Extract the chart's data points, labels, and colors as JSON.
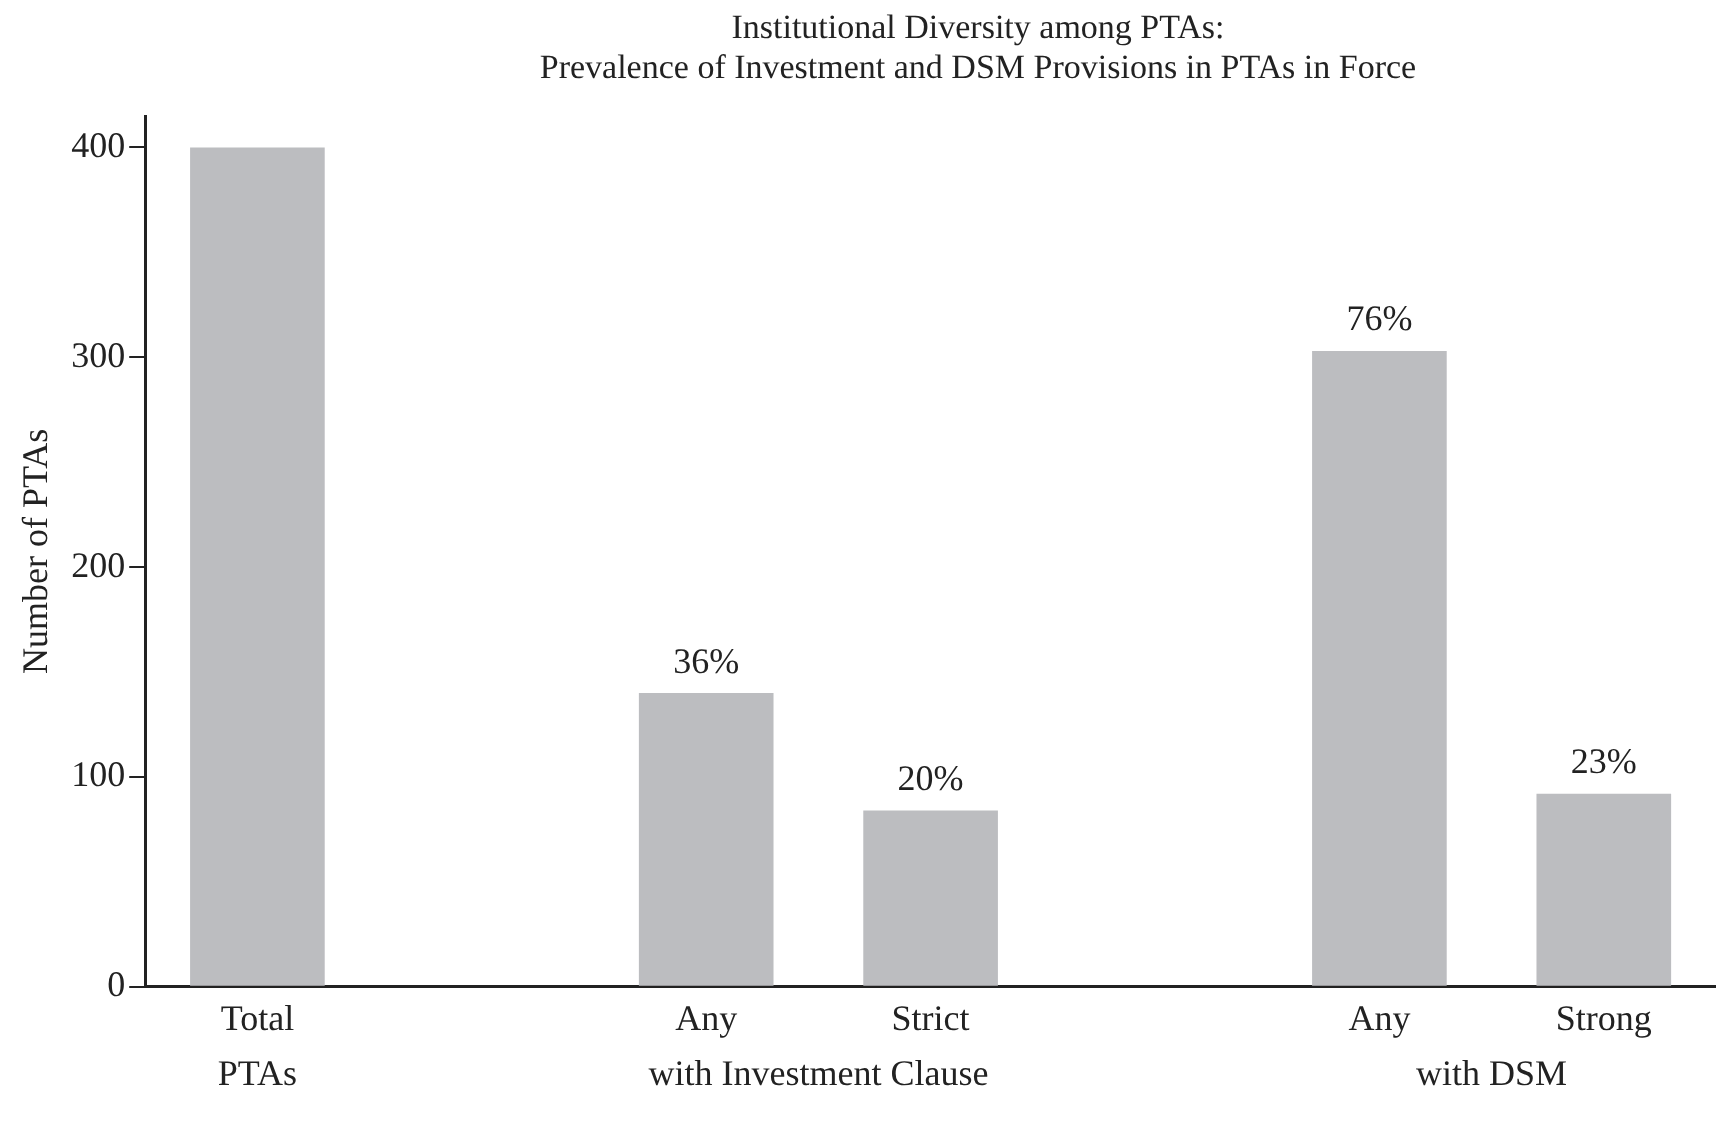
{
  "chart_data": {
    "type": "bar",
    "title": "Institutional Diversity among PTAs:\nPrevalence of Investment and DSM Provisions in PTAs in Force",
    "ylabel": "Number of PTAs",
    "categories": [
      "Total",
      null,
      "Any",
      "Strict",
      null,
      "Any",
      "Strong"
    ],
    "values": [
      400,
      null,
      140,
      84,
      null,
      303,
      92
    ],
    "color": "#bcbdc0",
    "annotations": [
      "PTAs",
      "with Investment Clause",
      "with DSM",
      {
        "text": "36%",
        "x": "Any",
        "y": 140
      },
      {
        "text": "20%",
        "x": "Strict",
        "y": 84
      },
      "76%",
      {
        "text": "23%",
        "x": "Strong",
        "y": 92
      }
    ],
    "ylim": [
      0,
      415
    ],
    "yticks": [
      0,
      100,
      200,
      300,
      400
    ],
    "grid": false,
    "legend": false
  }
}
